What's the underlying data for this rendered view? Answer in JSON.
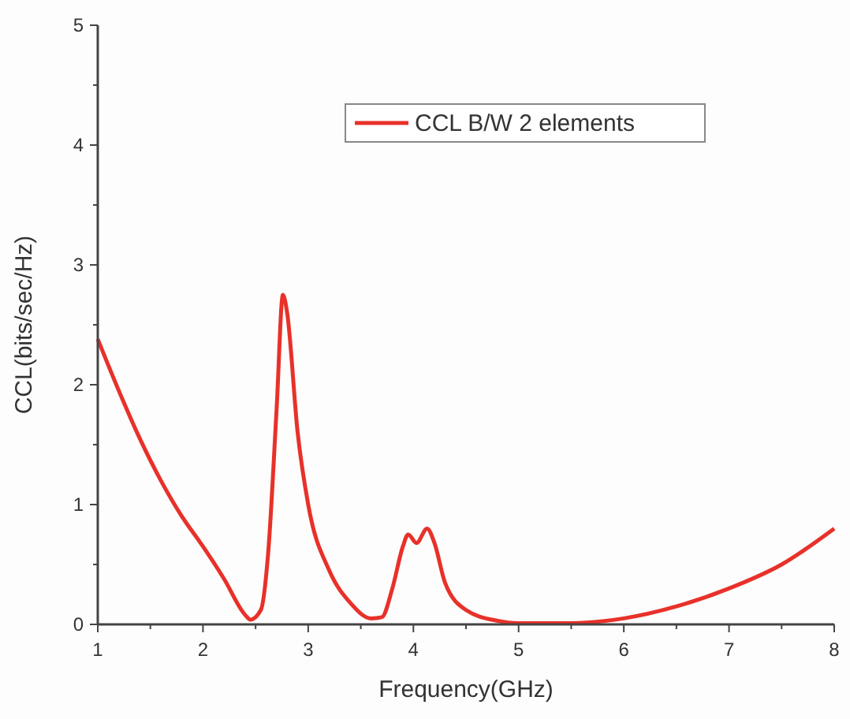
{
  "chart_data": {
    "type": "line",
    "xlabel": "Frequency(GHz)",
    "ylabel": "CCL(bits/sec/Hz)",
    "xlim": [
      1,
      8
    ],
    "ylim": [
      0,
      5
    ],
    "xticks": [
      1,
      {
        "value": 1.5,
        "label": null
      },
      2,
      {
        "value": 2.5,
        "label": null
      },
      3,
      {
        "value": 3.5,
        "label": null
      },
      4,
      {
        "value": 4.5,
        "label": null
      },
      5,
      {
        "value": 5.5,
        "label": null
      },
      6,
      {
        "value": 6.5,
        "label": null
      },
      7,
      {
        "value": 7.5,
        "label": null
      },
      8
    ],
    "yticks": [
      0,
      {
        "value": 0.5,
        "label": null
      },
      1,
      {
        "value": 1.5,
        "label": null
      },
      2,
      {
        "value": 2.5,
        "label": null
      },
      3,
      {
        "value": 3.5,
        "label": null
      },
      4,
      {
        "value": 4.5,
        "label": null
      },
      5
    ],
    "grid": false,
    "legend": "top right",
    "marker": "none",
    "line_style": "solid",
    "x": [
      1.0,
      1.2,
      1.4,
      1.6,
      1.8,
      2.0,
      2.2,
      2.4,
      2.45,
      2.55,
      2.62,
      2.7,
      2.76,
      2.8,
      2.9,
      3.0,
      3.2,
      3.4,
      3.6,
      3.7,
      3.8,
      3.9,
      3.95,
      4.03,
      4.13,
      4.2,
      4.3,
      4.5,
      4.8,
      5.0,
      5.5,
      6.0,
      6.5,
      7.0,
      7.5,
      8.0
    ],
    "series": [
      {
        "name": "CCL B/W 2 elements",
        "color": "#e8312a",
        "values": [
          2.38,
          1.95,
          1.55,
          1.2,
          0.9,
          0.65,
          0.38,
          0.08,
          0.04,
          0.12,
          0.6,
          1.8,
          2.75,
          2.6,
          1.6,
          1.0,
          0.45,
          0.18,
          0.05,
          0.06,
          0.3,
          0.65,
          0.75,
          0.68,
          0.8,
          0.68,
          0.35,
          0.12,
          0.03,
          0.01,
          0.01,
          0.05,
          0.15,
          0.3,
          0.5,
          0.8
        ]
      }
    ]
  }
}
